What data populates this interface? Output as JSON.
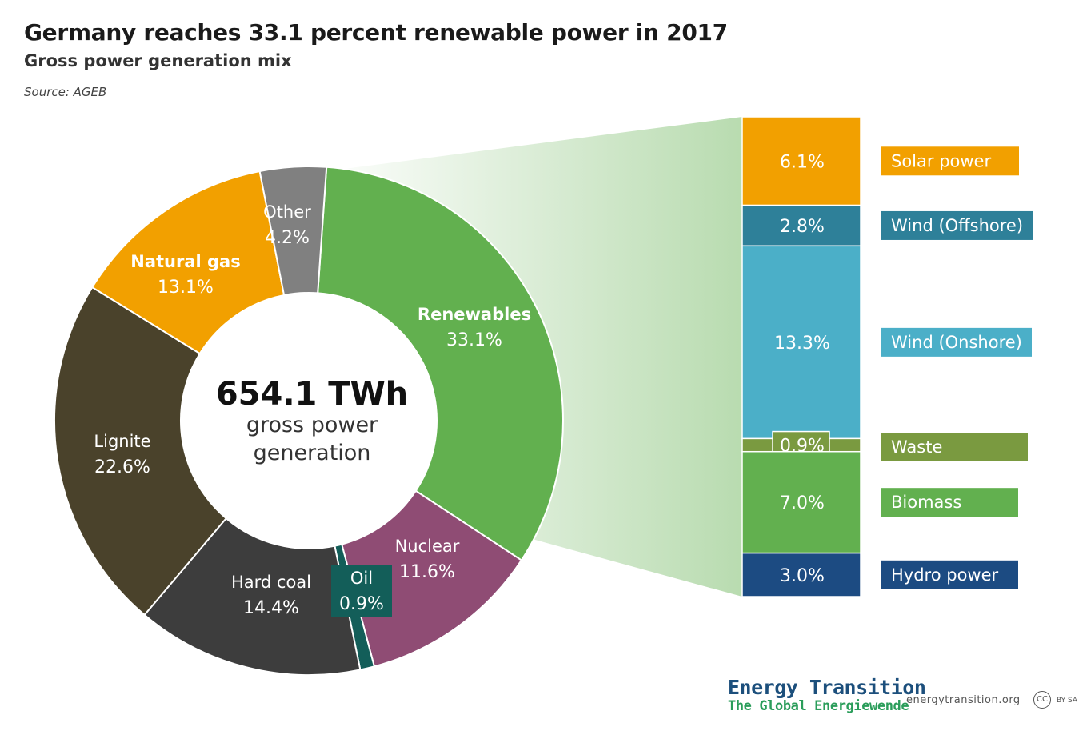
{
  "header": {
    "title": "Germany reaches 33.1 percent renewable power in 2017",
    "subtitle": "Gross power generation mix",
    "source": "Source: AGEB"
  },
  "center": {
    "value": "654.1 TWh",
    "line1": "gross power",
    "line2": "generation"
  },
  "footer": {
    "brand_main": "Energy Transition",
    "brand_sub": "The Global Energiewende",
    "url": "energytransition.org",
    "cc": "CC",
    "license": "BY SA"
  },
  "chart_data": [
    {
      "type": "pie",
      "variant": "donut",
      "total": "654.1 TWh",
      "slices": [
        {
          "label": "Renewables",
          "value": 33.1,
          "display": "33.1%",
          "color": "#62b04f"
        },
        {
          "label": "Nuclear",
          "value": 11.6,
          "display": "11.6%",
          "color": "#8f4c74"
        },
        {
          "label": "Oil",
          "value": 0.9,
          "display": "0.9%",
          "color": "#135e59"
        },
        {
          "label": "Hard coal",
          "value": 14.4,
          "display": "14.4%",
          "color": "#3d3d3d"
        },
        {
          "label": "Lignite",
          "value": 22.6,
          "display": "22.6%",
          "color": "#4a422b"
        },
        {
          "label": "Natural gas",
          "value": 13.1,
          "display": "13.1%",
          "color": "#f2a000"
        },
        {
          "label": "Other",
          "value": 4.2,
          "display": "4.2%",
          "color": "#808080"
        }
      ]
    },
    {
      "type": "bar",
      "variant": "stacked",
      "segments": [
        {
          "label": "Solar power",
          "value": 6.1,
          "display": "6.1%",
          "color": "#f2a000"
        },
        {
          "label": "Wind (Offshore)",
          "value": 2.8,
          "display": "2.8%",
          "color": "#2e8099"
        },
        {
          "label": "Wind (Onshore)",
          "value": 13.3,
          "display": "13.3%",
          "color": "#4bafc8"
        },
        {
          "label": "Waste",
          "value": 0.9,
          "display": "0.9%",
          "color": "#7a9a40"
        },
        {
          "label": "Biomass",
          "value": 7.0,
          "display": "7.0%",
          "color": "#62b04f"
        },
        {
          "label": "Hydro power",
          "value": 3.0,
          "display": "3.0%",
          "color": "#1c4b82"
        }
      ]
    }
  ]
}
